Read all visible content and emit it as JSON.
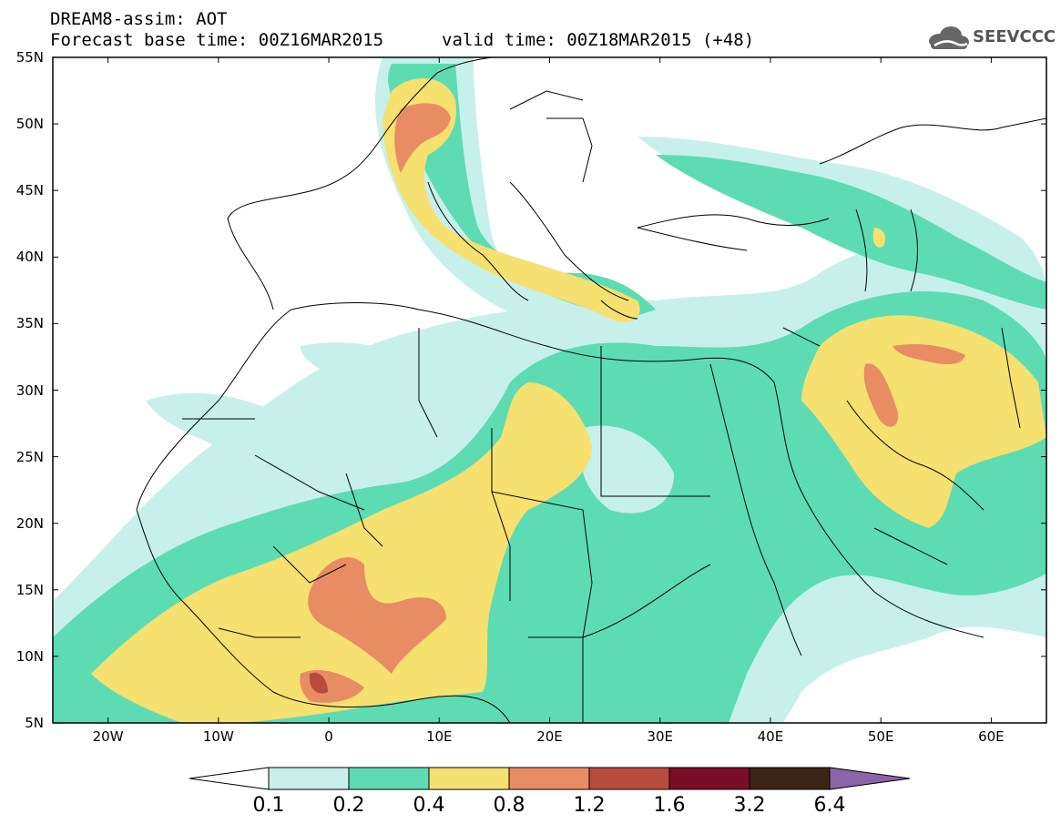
{
  "header": {
    "model_title": "DREAM8-assim: AOT",
    "base_time": "Forecast base time: 00Z16MAR2015",
    "valid_time": "valid time: 00Z18MAR2015 (+48)",
    "logo_text": "SEEVCCC",
    "logo_icon": "cloud-icon"
  },
  "map": {
    "lat_labels": [
      "55N",
      "50N",
      "45N",
      "40N",
      "35N",
      "30N",
      "25N",
      "20N",
      "15N",
      "10N",
      "5N"
    ],
    "lon_labels": [
      "20W",
      "10W",
      "0",
      "10E",
      "20E",
      "30E",
      "40E",
      "50E",
      "60E"
    ],
    "lon_range": [
      -25,
      65
    ],
    "lat_range": [
      5,
      55
    ]
  },
  "colorbar": {
    "labels": [
      "0.1",
      "0.2",
      "0.4",
      "0.8",
      "1.2",
      "1.6",
      "3.2",
      "6.4"
    ],
    "colors": [
      "#ffffff",
      "#c8f0ea",
      "#5ddcb4",
      "#f5e070",
      "#e88c64",
      "#b84c3c",
      "#7a0e26",
      "#3c2416",
      "#8c64a8"
    ]
  }
}
